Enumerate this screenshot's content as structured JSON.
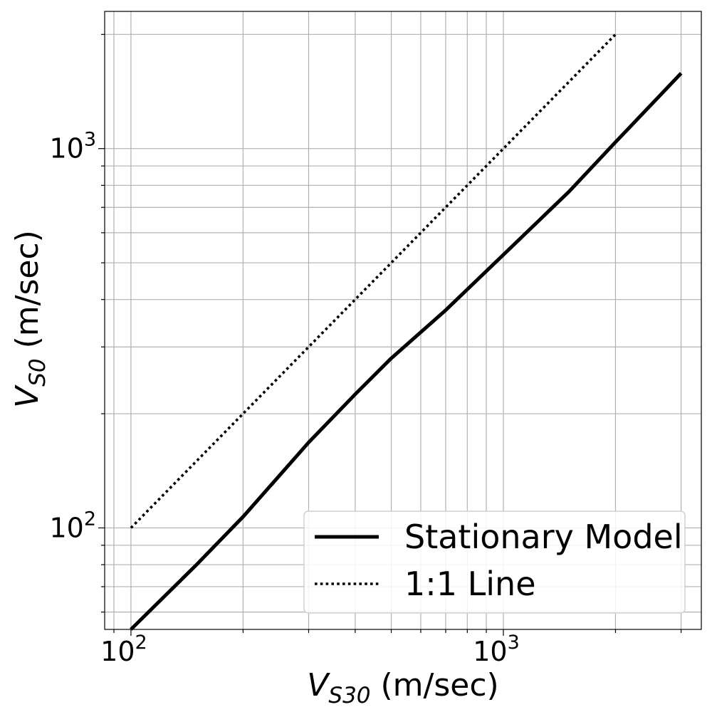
{
  "chart_data": {
    "type": "line",
    "xscale": "log",
    "yscale": "log",
    "xlim": [
      85,
      3400
    ],
    "ylim": [
      54,
      2300
    ],
    "grid": true,
    "legend_position": "lower-right",
    "xlabel": {
      "main": "V",
      "sub": "S30",
      "rest": " (m/sec)"
    },
    "ylabel": {
      "main": "V",
      "sub": "S0",
      "rest": " (m/sec)"
    },
    "xticks": [
      {
        "base": "10",
        "exp": "2",
        "value": 100
      },
      {
        "base": "10",
        "exp": "3",
        "value": 1000
      }
    ],
    "yticks": [
      {
        "base": "10",
        "exp": "2",
        "value": 100
      },
      {
        "base": "10",
        "exp": "3",
        "value": 1000
      }
    ],
    "series": [
      {
        "name": "Stationary Model",
        "style": "solid",
        "color": "#000000",
        "x": [
          100,
          150,
          200,
          300,
          400,
          500,
          700,
          1000,
          1500,
          2000,
          3000
        ],
        "y": [
          54,
          80,
          107,
          168,
          225,
          280,
          375,
          525,
          770,
          1040,
          1580
        ]
      },
      {
        "name": "1:1 Line",
        "style": "dotted",
        "color": "#000000",
        "x": [
          100,
          2000
        ],
        "y": [
          100,
          2000
        ]
      }
    ]
  }
}
